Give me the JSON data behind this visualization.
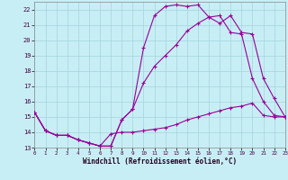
{
  "xlabel": "Windchill (Refroidissement éolien,°C)",
  "background_color": "#c8eef5",
  "grid_color": "#a8d8e0",
  "line_color": "#990099",
  "xlim": [
    0,
    23
  ],
  "ylim": [
    13,
    22.5
  ],
  "xticks": [
    0,
    1,
    2,
    3,
    4,
    5,
    6,
    7,
    8,
    9,
    10,
    11,
    12,
    13,
    14,
    15,
    16,
    17,
    18,
    19,
    20,
    21,
    22,
    23
  ],
  "yticks": [
    13,
    14,
    15,
    16,
    17,
    18,
    19,
    20,
    21,
    22
  ],
  "line1_x": [
    0,
    1,
    2,
    3,
    4,
    5,
    6,
    7,
    8,
    9,
    10,
    11,
    12,
    13,
    14,
    15,
    16,
    17,
    18,
    19,
    20,
    21,
    22,
    23
  ],
  "line1_y": [
    15.3,
    14.1,
    13.8,
    13.8,
    13.5,
    13.3,
    13.1,
    13.1,
    14.8,
    15.5,
    19.5,
    21.6,
    22.2,
    22.3,
    22.2,
    22.3,
    21.5,
    21.6,
    20.5,
    20.4,
    17.5,
    16.0,
    15.1,
    15.0
  ],
  "line2_x": [
    0,
    1,
    2,
    3,
    4,
    5,
    6,
    7,
    8,
    9,
    10,
    11,
    12,
    13,
    14,
    15,
    16,
    17,
    18,
    19,
    20,
    21,
    22,
    23
  ],
  "line2_y": [
    15.3,
    14.1,
    13.8,
    13.8,
    13.5,
    13.3,
    13.1,
    13.9,
    14.0,
    14.0,
    14.1,
    14.2,
    14.3,
    14.5,
    14.8,
    15.0,
    15.2,
    15.4,
    15.6,
    15.7,
    15.9,
    15.1,
    15.0,
    15.0
  ],
  "line3_x": [
    0,
    1,
    2,
    3,
    4,
    5,
    6,
    7,
    8,
    9,
    10,
    11,
    12,
    13,
    14,
    15,
    16,
    17,
    18,
    19,
    20,
    21,
    22,
    23
  ],
  "line3_y": [
    15.3,
    14.1,
    13.8,
    13.8,
    13.5,
    13.3,
    13.1,
    13.1,
    14.8,
    15.5,
    17.2,
    18.3,
    19.0,
    19.7,
    20.6,
    21.1,
    21.5,
    21.1,
    21.6,
    20.5,
    20.4,
    17.5,
    16.2,
    15.0
  ]
}
